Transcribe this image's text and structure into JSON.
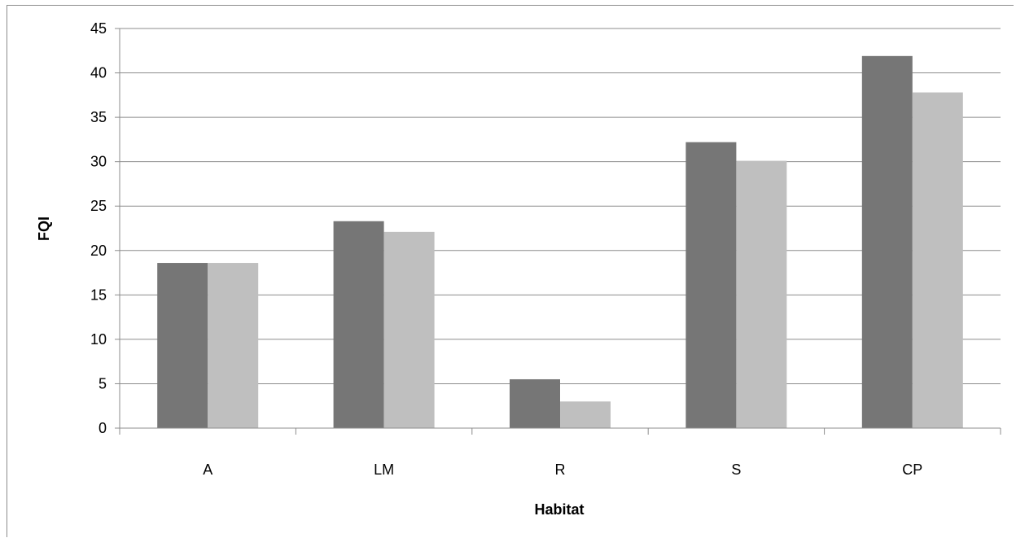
{
  "chart_data": {
    "type": "bar",
    "title": "",
    "xlabel": "Habitat",
    "ylabel": "FQI",
    "categories": [
      "A",
      "LM",
      "R",
      "S",
      "CP"
    ],
    "series": [
      {
        "color": "#767676",
        "values": [
          18.6,
          23.3,
          5.5,
          32.2,
          41.9
        ]
      },
      {
        "color": "#bfbfbf",
        "values": [
          18.6,
          22.1,
          3.0,
          30.1,
          37.8
        ]
      }
    ],
    "ylim": [
      0,
      45
    ],
    "yticks": [
      "0",
      "5",
      "10",
      "15",
      "20",
      "25",
      "30",
      "35",
      "40",
      "45"
    ],
    "ytick_values": [
      0,
      5,
      10,
      15,
      20,
      25,
      30,
      35,
      40,
      45
    ],
    "grid": true,
    "legend": "none"
  }
}
